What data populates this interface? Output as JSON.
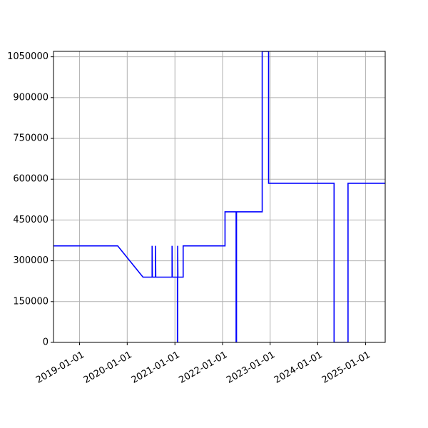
{
  "chart_data": {
    "type": "line",
    "title": "",
    "xlabel": "",
    "ylabel": "",
    "x_axis": {
      "type": "date",
      "range": [
        "2018-06-15",
        "2025-06-01"
      ],
      "ticks": [
        "2019-01-01",
        "2020-01-01",
        "2021-01-01",
        "2022-01-01",
        "2023-01-01",
        "2024-01-01",
        "2025-01-01"
      ],
      "tick_labels": [
        "2019-01-01",
        "2020-01-01",
        "2021-01-01",
        "2022-01-01",
        "2023-01-01",
        "2024-01-01",
        "2025-01-01"
      ],
      "tick_label_rotation": 30
    },
    "y_axis": {
      "range": [
        0,
        1070000
      ],
      "ticks": [
        0,
        150000,
        300000,
        450000,
        600000,
        750000,
        900000,
        1050000
      ],
      "tick_labels": [
        "0",
        "150000",
        "300000",
        "450000",
        "600000",
        "750000",
        "900000",
        "1050000"
      ]
    },
    "grid": true,
    "legend": "none",
    "colors": {
      "line": "#0000ff",
      "grid": "#b0b0b0",
      "axes": "#000000"
    },
    "series": [
      {
        "points": [
          [
            "2018-06-15",
            355000
          ],
          [
            "2019-10-20",
            355000
          ],
          [
            "2020-05-01",
            240000
          ],
          [
            "2020-07-10",
            240000
          ],
          [
            "2020-07-10",
            355000
          ],
          [
            "2020-07-12",
            240000
          ],
          [
            "2020-08-05",
            240000
          ],
          [
            "2020-08-05",
            355000
          ],
          [
            "2020-08-07",
            240000
          ],
          [
            "2020-12-10",
            240000
          ],
          [
            "2020-12-10",
            355000
          ],
          [
            "2020-12-12",
            240000
          ],
          [
            "2021-01-20",
            240000
          ],
          [
            "2021-01-20",
            0
          ],
          [
            "2021-01-22",
            0
          ],
          [
            "2021-01-22",
            355000
          ],
          [
            "2021-01-24",
            240000
          ],
          [
            "2021-03-05",
            240000
          ],
          [
            "2021-03-05",
            355000
          ],
          [
            "2022-01-20",
            355000
          ],
          [
            "2022-01-20",
            480000
          ],
          [
            "2022-04-15",
            480000
          ],
          [
            "2022-04-15",
            0
          ],
          [
            "2022-04-18",
            0
          ],
          [
            "2022-04-18",
            480000
          ],
          [
            "2022-11-01",
            480000
          ],
          [
            "2022-11-01",
            1070000
          ],
          [
            "2022-12-20",
            1070000
          ],
          [
            "2022-12-20",
            585000
          ],
          [
            "2024-05-05",
            585000
          ],
          [
            "2024-05-05",
            0
          ],
          [
            "2024-08-20",
            0
          ],
          [
            "2024-08-20",
            585000
          ],
          [
            "2025-06-01",
            585000
          ]
        ]
      }
    ]
  }
}
